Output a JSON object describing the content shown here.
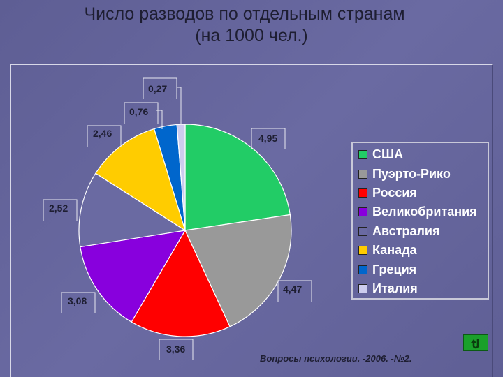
{
  "title_line1": "Число разводов по отдельным странам",
  "title_line2": "(на 1000 чел.)",
  "source": "Вопросы психологии. -2006. -№2.",
  "chart_data": {
    "type": "pie",
    "categories": [
      "США",
      "Пуэрто-Рико",
      "Россия",
      "Великобритания",
      "Австралия",
      "Канада",
      "Греция",
      "Италия"
    ],
    "values": [
      4.95,
      4.47,
      3.36,
      3.08,
      2.52,
      2.46,
      0.76,
      0.27
    ],
    "value_labels": [
      "4,95",
      "4,47",
      "3,36",
      "3,08",
      "2,52",
      "2,46",
      "0,76",
      "0,27"
    ],
    "colors": [
      "#22cc66",
      "#999999",
      "#ff0000",
      "#8800dd",
      "#6a6aa2",
      "#ffcc00",
      "#0066cc",
      "#ccccee"
    ],
    "legend_position": "right"
  },
  "nav_button": {
    "icon": "return-arrow-icon",
    "color": "#1aa02a"
  }
}
